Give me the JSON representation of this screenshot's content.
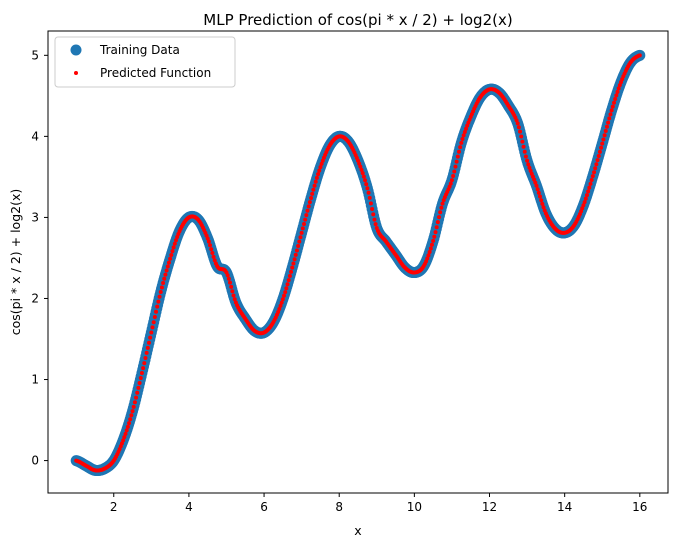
{
  "chart_data": {
    "type": "scatter",
    "title": "MLP Prediction of cos(pi * x / 2) + log2(x)",
    "xlabel": "x",
    "ylabel": "cos(pi * x / 2) + log2(x)",
    "xlim": [
      0.25,
      16.75
    ],
    "ylim": [
      -0.4,
      5.3
    ],
    "xticks": [
      2,
      4,
      6,
      8,
      10,
      12,
      14,
      16
    ],
    "yticks": [
      0,
      1,
      2,
      3,
      4,
      5
    ],
    "x_range": [
      1,
      16
    ],
    "grid": false,
    "legend_position": "top-left",
    "series": [
      {
        "name": "Training Data",
        "color": "#1f77b4",
        "marker": "large-circle",
        "x": [
          1.0,
          1.25,
          1.5,
          1.75,
          2.0,
          2.25,
          2.5,
          2.75,
          3.0,
          3.25,
          3.5,
          3.75,
          4.0,
          4.25,
          4.5,
          4.75,
          5.0,
          5.25,
          5.5,
          5.75,
          6.0,
          6.25,
          6.5,
          6.75,
          7.0,
          7.25,
          7.5,
          7.75,
          8.0,
          8.25,
          8.5,
          8.75,
          9.0,
          9.25,
          9.5,
          9.75,
          10.0,
          10.25,
          10.5,
          10.75,
          11.0,
          11.25,
          11.5,
          11.75,
          12.0,
          12.25,
          12.5,
          12.75,
          13.0,
          13.25,
          13.5,
          13.75,
          14.0,
          14.25,
          14.5,
          14.75,
          15.0,
          15.25,
          15.5,
          15.75,
          16.0
        ],
        "y": [
          0.0,
          -0.06,
          -0.12,
          -0.1,
          0.0,
          0.25,
          0.61,
          1.08,
          1.58,
          2.08,
          2.49,
          2.83,
          3.0,
          2.97,
          2.74,
          2.4,
          2.32,
          1.95,
          1.75,
          1.6,
          1.58,
          1.71,
          1.99,
          2.38,
          2.81,
          3.24,
          3.62,
          3.89,
          4.0,
          3.93,
          3.7,
          3.36,
          2.87,
          2.7,
          2.54,
          2.38,
          2.32,
          2.4,
          2.71,
          3.17,
          3.46,
          3.92,
          4.24,
          4.48,
          4.58,
          4.54,
          4.38,
          4.16,
          3.7,
          3.39,
          3.05,
          2.86,
          2.81,
          2.9,
          3.15,
          3.51,
          3.91,
          4.32,
          4.67,
          4.91,
          5.0
        ]
      },
      {
        "name": "Predicted Function",
        "color": "#ff0000",
        "marker": "small-dot",
        "x": [
          1.0,
          1.25,
          1.5,
          1.75,
          2.0,
          2.25,
          2.5,
          2.75,
          3.0,
          3.25,
          3.5,
          3.75,
          4.0,
          4.25,
          4.5,
          4.75,
          5.0,
          5.25,
          5.5,
          5.75,
          6.0,
          6.25,
          6.5,
          6.75,
          7.0,
          7.25,
          7.5,
          7.75,
          8.0,
          8.25,
          8.5,
          8.75,
          9.0,
          9.25,
          9.5,
          9.75,
          10.0,
          10.25,
          10.5,
          10.75,
          11.0,
          11.25,
          11.5,
          11.75,
          12.0,
          12.25,
          12.5,
          12.75,
          13.0,
          13.25,
          13.5,
          13.75,
          14.0,
          14.25,
          14.5,
          14.75,
          15.0,
          15.25,
          15.5,
          15.75,
          16.0
        ],
        "y": [
          0.0,
          -0.06,
          -0.12,
          -0.1,
          0.0,
          0.25,
          0.61,
          1.08,
          1.58,
          2.08,
          2.49,
          2.83,
          3.0,
          2.97,
          2.74,
          2.4,
          2.32,
          1.95,
          1.75,
          1.6,
          1.58,
          1.71,
          1.99,
          2.38,
          2.81,
          3.24,
          3.62,
          3.89,
          4.0,
          3.93,
          3.7,
          3.36,
          2.87,
          2.7,
          2.54,
          2.38,
          2.32,
          2.4,
          2.71,
          3.17,
          3.46,
          3.92,
          4.24,
          4.48,
          4.58,
          4.54,
          4.38,
          4.16,
          3.7,
          3.39,
          3.05,
          2.86,
          2.81,
          2.9,
          3.15,
          3.51,
          3.91,
          4.32,
          4.67,
          4.91,
          5.0
        ]
      }
    ]
  }
}
